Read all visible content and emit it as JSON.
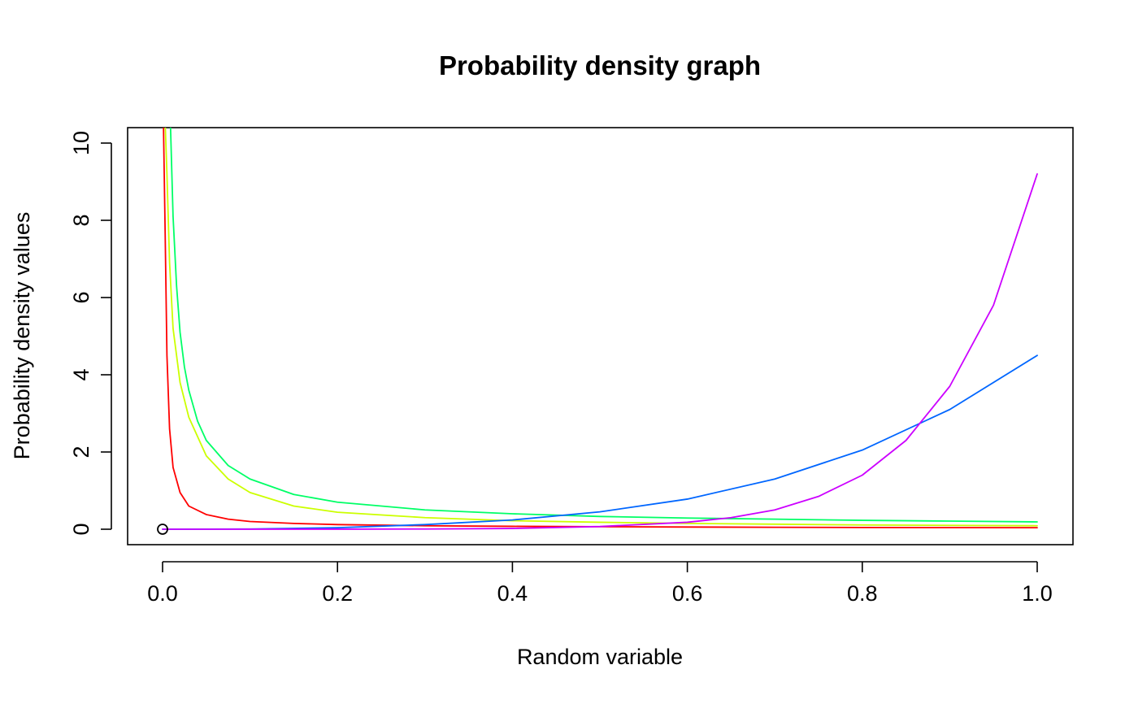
{
  "chart_data": {
    "type": "line",
    "title": "Probability density graph",
    "xlabel": "Random variable",
    "ylabel": "Probability density values",
    "xlim": [
      0,
      1
    ],
    "ylim": [
      0,
      10
    ],
    "x_ticks": [
      "0.0",
      "0.2",
      "0.4",
      "0.6",
      "0.8",
      "1.0"
    ],
    "y_ticks": [
      "0",
      "2",
      "4",
      "6",
      "8",
      "10"
    ],
    "grid": false,
    "legend": "none",
    "marker": {
      "x": 0,
      "y": 0,
      "shape": "open-circle"
    },
    "series": [
      {
        "color": "#ff0000",
        "x": [
          0.001,
          0.003,
          0.005,
          0.008,
          0.012,
          0.02,
          0.03,
          0.05,
          0.075,
          0.1,
          0.15,
          0.2,
          0.3,
          0.4,
          0.5,
          0.6,
          0.7,
          0.8,
          0.9,
          1.0
        ],
        "y": [
          10.5,
          7.6,
          4.5,
          2.6,
          1.6,
          0.95,
          0.6,
          0.38,
          0.26,
          0.2,
          0.15,
          0.12,
          0.09,
          0.075,
          0.065,
          0.057,
          0.05,
          0.045,
          0.042,
          0.04
        ]
      },
      {
        "color": "#ccff00",
        "x": [
          0.003,
          0.005,
          0.008,
          0.012,
          0.02,
          0.03,
          0.05,
          0.075,
          0.1,
          0.15,
          0.2,
          0.3,
          0.4,
          0.5,
          0.6,
          0.7,
          0.8,
          0.9,
          1.0
        ],
        "y": [
          10.5,
          9.2,
          6.9,
          5.2,
          3.8,
          2.9,
          1.9,
          1.3,
          0.95,
          0.6,
          0.44,
          0.3,
          0.22,
          0.18,
          0.15,
          0.13,
          0.11,
          0.1,
          0.09
        ]
      },
      {
        "color": "#00ff66",
        "x": [
          0.009,
          0.012,
          0.016,
          0.02,
          0.025,
          0.03,
          0.04,
          0.05,
          0.075,
          0.1,
          0.15,
          0.2,
          0.3,
          0.4,
          0.5,
          0.6,
          0.7,
          0.8,
          0.9,
          1.0
        ],
        "y": [
          10.5,
          8.1,
          6.3,
          5.1,
          4.2,
          3.6,
          2.8,
          2.3,
          1.65,
          1.3,
          0.9,
          0.7,
          0.5,
          0.4,
          0.33,
          0.29,
          0.26,
          0.23,
          0.21,
          0.19
        ]
      },
      {
        "color": "#0066ff",
        "x": [
          0.0,
          0.1,
          0.2,
          0.3,
          0.4,
          0.5,
          0.6,
          0.7,
          0.8,
          0.9,
          1.0
        ],
        "y": [
          0.0,
          0.005,
          0.04,
          0.12,
          0.24,
          0.45,
          0.78,
          1.3,
          2.05,
          3.1,
          4.5
        ]
      },
      {
        "color": "#cc00ff",
        "x": [
          0.0,
          0.2,
          0.3,
          0.4,
          0.5,
          0.6,
          0.65,
          0.7,
          0.75,
          0.8,
          0.85,
          0.9,
          0.95,
          1.0
        ],
        "y": [
          0.0,
          0.001,
          0.005,
          0.02,
          0.07,
          0.18,
          0.3,
          0.5,
          0.85,
          1.4,
          2.3,
          3.7,
          5.8,
          9.2
        ]
      }
    ]
  }
}
